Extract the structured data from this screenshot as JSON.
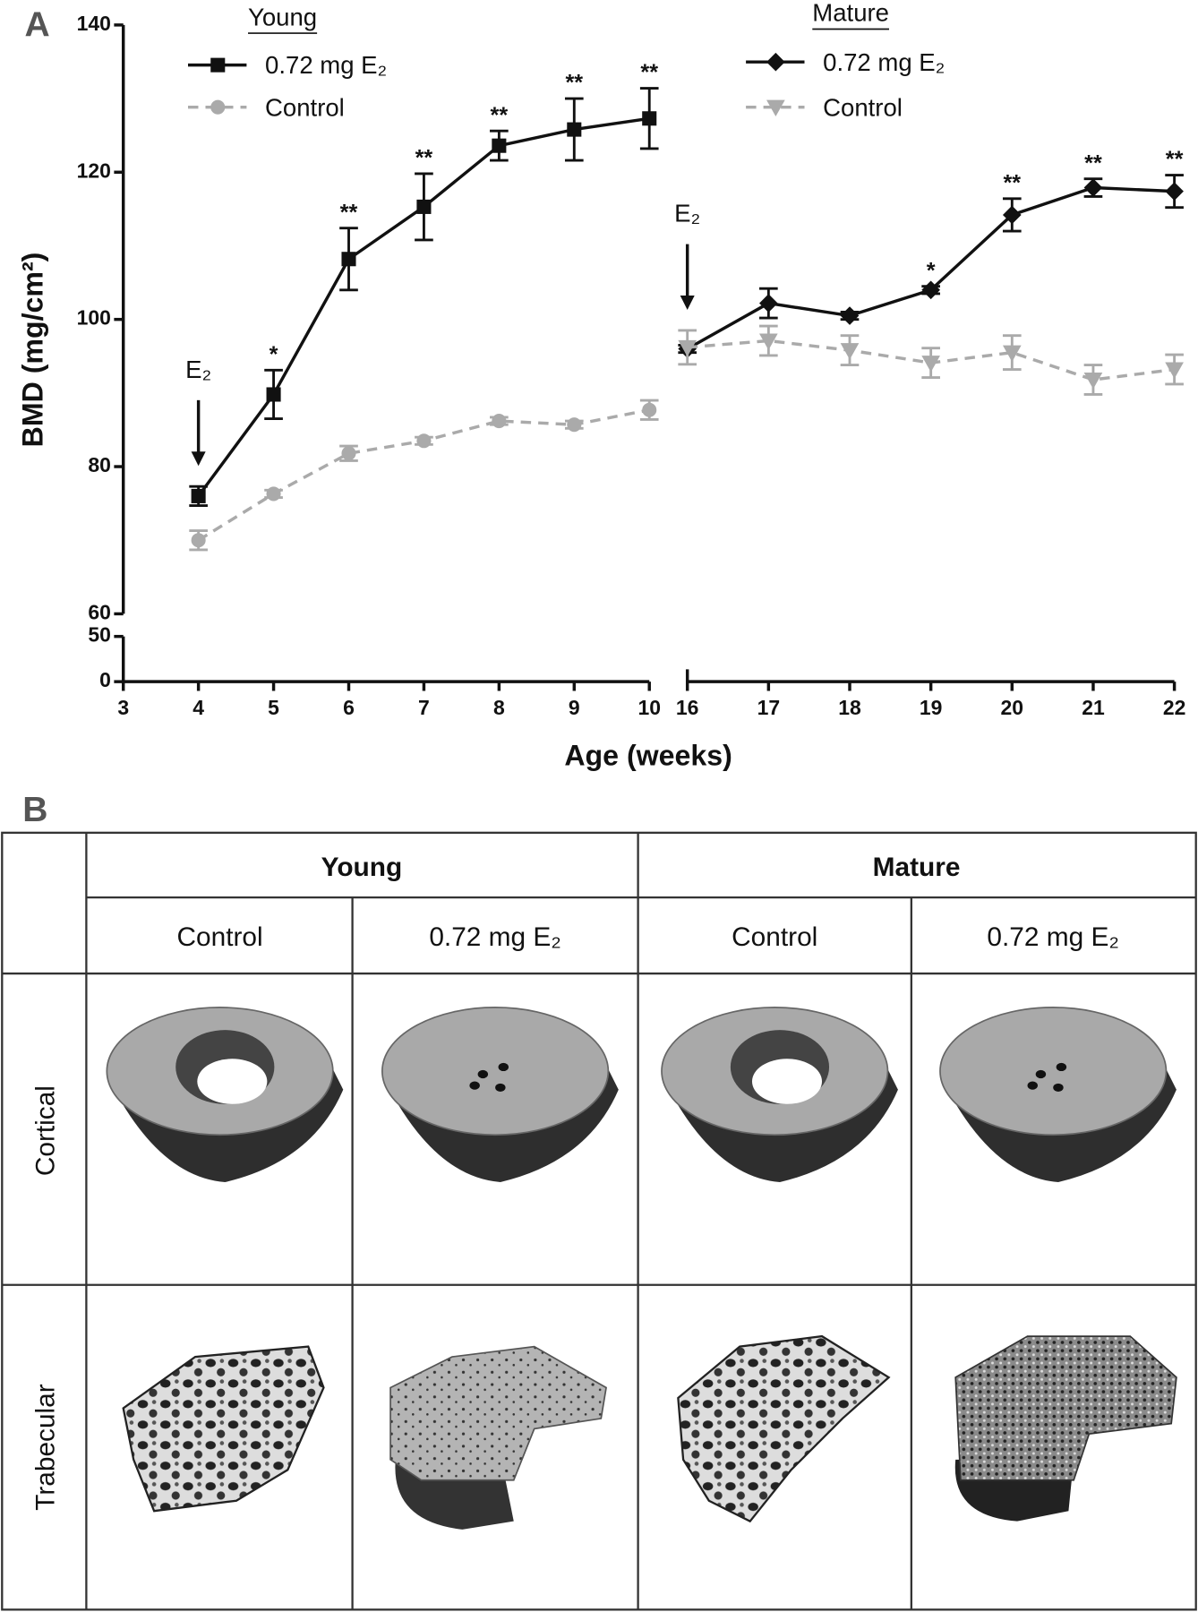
{
  "chart_data": {
    "type": "line",
    "panel_label": "A",
    "y_label": "BMD (mg/cm²)",
    "x_label": "Age (weeks)",
    "ylim": [
      60,
      140
    ],
    "yticks": [
      60,
      80,
      100,
      120,
      140
    ],
    "ylim_lower": [
      0,
      50
    ],
    "yticks_lower": [
      0,
      50
    ],
    "panels": [
      {
        "title": "Young",
        "xlim": [
          3,
          10
        ],
        "xticks": [
          3,
          4,
          5,
          6,
          7,
          8,
          9,
          10
        ],
        "arrow": {
          "x": 4,
          "label": "E₂"
        },
        "series": [
          {
            "name": "0.72 mg E₂",
            "color": "#111111",
            "marker": "square",
            "dashed": false,
            "x": [
              4,
              5,
              6,
              7,
              8,
              9,
              10
            ],
            "values": [
              76,
              89.8,
              108.2,
              115.3,
              123.6,
              125.8,
              127.3
            ],
            "errors": [
              1.3,
              3.3,
              4.2,
              4.5,
              2,
              4.2,
              4.1
            ],
            "annotations": [
              null,
              "*",
              "**",
              "**",
              "**",
              "**",
              "**"
            ]
          },
          {
            "name": "Control",
            "color": "#aaaaaa",
            "marker": "circle",
            "dashed": true,
            "x": [
              4,
              5,
              6,
              7,
              8,
              9,
              10
            ],
            "values": [
              70,
              76.3,
              81.8,
              83.5,
              86.2,
              85.7,
              87.7
            ],
            "errors": [
              1.3,
              0.5,
              1,
              0.5,
              0.5,
              0.5,
              1.3
            ]
          }
        ]
      },
      {
        "title": "Mature",
        "xlim": [
          16,
          22
        ],
        "xticks": [
          16,
          17,
          18,
          19,
          20,
          21,
          22
        ],
        "arrow": {
          "x": 16,
          "label": "E₂"
        },
        "series": [
          {
            "name": "0.72 mg E₂",
            "color": "#111111",
            "marker": "diamond",
            "dashed": false,
            "x": [
              16,
              17,
              18,
              19,
              20,
              21,
              22
            ],
            "values": [
              96,
              102.2,
              100.5,
              104,
              114.2,
              117.9,
              117.4
            ],
            "errors": [
              0.5,
              2,
              0.5,
              0.5,
              2.2,
              1.2,
              2.2
            ],
            "annotations": [
              null,
              null,
              null,
              "*",
              "**",
              "**",
              "**"
            ]
          },
          {
            "name": "Control",
            "color": "#aaaaaa",
            "marker": "triangle-down",
            "dashed": true,
            "x": [
              16,
              17,
              18,
              19,
              20,
              21,
              22
            ],
            "values": [
              96.2,
              97.1,
              95.8,
              94.1,
              95.5,
              91.8,
              93.2
            ],
            "errors": [
              2.3,
              2,
              2,
              2,
              2.3,
              2,
              2
            ]
          }
        ]
      }
    ]
  },
  "table": {
    "label": "B",
    "group_headers": [
      "Young",
      "Mature"
    ],
    "column_headers": [
      "Control",
      "0.72 mg E₂",
      "Control",
      "0.72 mg E₂"
    ],
    "row_headers": [
      "Cortical",
      "Trabecular"
    ]
  }
}
